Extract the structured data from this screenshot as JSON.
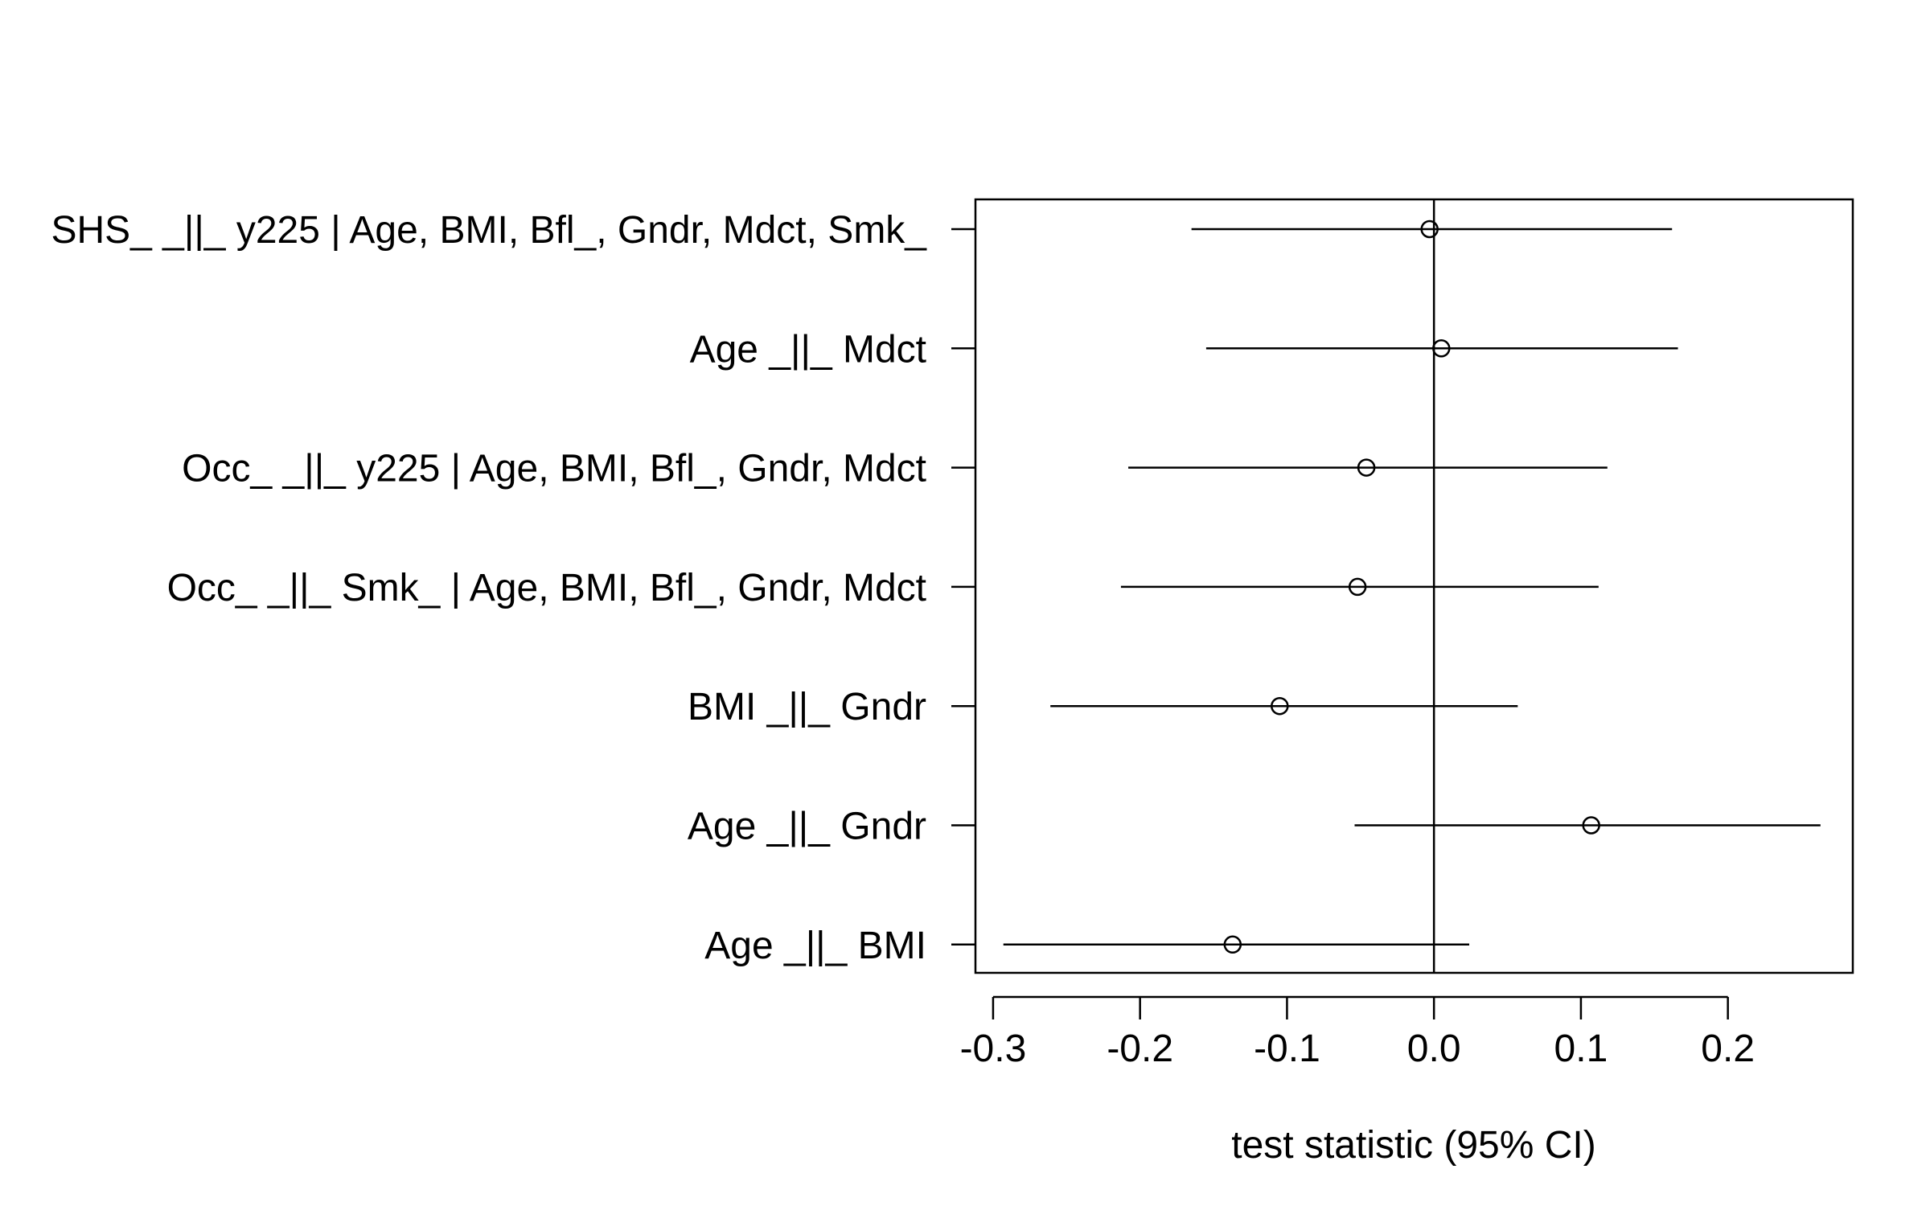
{
  "chart_data": {
    "type": "forest",
    "xlabel": "test statistic (95% CI)",
    "xlim": [
      -0.312,
      0.285
    ],
    "xticks": [
      -0.3,
      -0.2,
      -0.1,
      0.0,
      0.1,
      0.2
    ],
    "xtick_labels": [
      "-0.3",
      "-0.2",
      "-0.1",
      "0.0",
      "0.1",
      "0.2"
    ],
    "reference_line": 0,
    "rows": [
      {
        "label": "SHS_ _||_ y225 | Age, BMI, Bfl_, Gndr, Mdct, Smk_",
        "estimate": -0.003,
        "lower": -0.165,
        "upper": 0.162
      },
      {
        "label": "Age _||_ Mdct",
        "estimate": 0.005,
        "lower": -0.155,
        "upper": 0.166
      },
      {
        "label": "Occ_ _||_ y225 | Age, BMI, Bfl_, Gndr, Mdct",
        "estimate": -0.046,
        "lower": -0.208,
        "upper": 0.118
      },
      {
        "label": "Occ_ _||_ Smk_ | Age, BMI, Bfl_, Gndr, Mdct",
        "estimate": -0.052,
        "lower": -0.213,
        "upper": 0.112
      },
      {
        "label": "BMI _||_ Gndr",
        "estimate": -0.105,
        "lower": -0.261,
        "upper": 0.057
      },
      {
        "label": "Age _||_ Gndr",
        "estimate": 0.107,
        "lower": -0.054,
        "upper": 0.263
      },
      {
        "label": "Age _||_ BMI",
        "estimate": -0.137,
        "lower": -0.293,
        "upper": 0.024
      }
    ]
  }
}
